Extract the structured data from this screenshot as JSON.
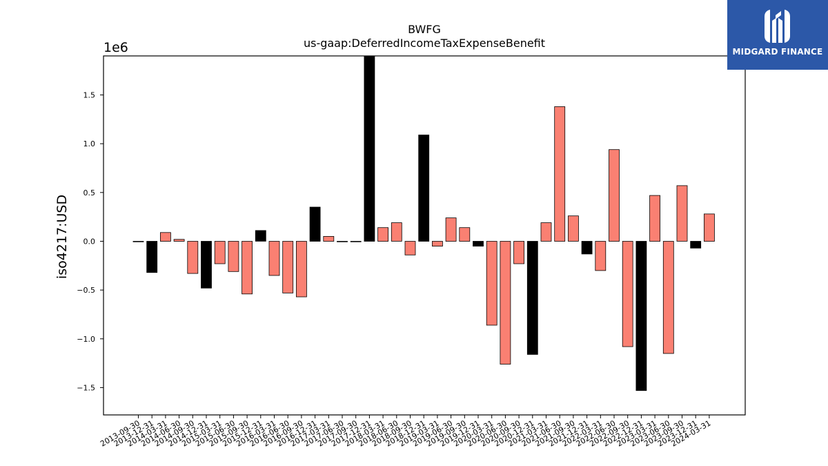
{
  "chart_data": {
    "type": "bar",
    "title": "BWFG",
    "subtitle": "us-gaap:DeferredIncomeTaxExpenseBenefit",
    "ylabel": "iso4217:USD",
    "xlabel": "",
    "y_multiplier_label": "1e6",
    "ylim": [
      -1.78,
      1.9
    ],
    "yticks": [
      -1.5,
      -1.0,
      -0.5,
      0.0,
      0.5,
      1.0,
      1.5
    ],
    "ytick_labels": [
      "−1.5",
      "−1.0",
      "−0.5",
      "0.0",
      "0.5",
      "1.0",
      "1.5"
    ],
    "grid": false,
    "colors": {
      "default": "#fa8072",
      "q4": "#000000",
      "edge": "#000000"
    },
    "categories": [
      "2013-09-30",
      "2013-12-31",
      "2014-03-31",
      "2014-06-30",
      "2014-09-30",
      "2014-12-31",
      "2015-03-31",
      "2015-06-30",
      "2015-09-30",
      "2015-12-31",
      "2016-03-31",
      "2016-06-30",
      "2016-09-30",
      "2016-12-31",
      "2017-03-31",
      "2017-06-30",
      "2017-09-30",
      "2017-12-31",
      "2018-03-31",
      "2018-06-30",
      "2018-09-30",
      "2018-12-31",
      "2019-03-31",
      "2019-06-30",
      "2019-09-30",
      "2019-12-31",
      "2020-03-31",
      "2020-06-30",
      "2020-09-30",
      "2020-12-31",
      "2021-03-31",
      "2021-06-30",
      "2021-09-30",
      "2021-12-31",
      "2022-03-31",
      "2022-06-30",
      "2022-09-30",
      "2022-12-31",
      "2023-03-31",
      "2023-06-30",
      "2023-09-30",
      "2023-12-31",
      "2024-03-31"
    ],
    "values": [
      0.0,
      -0.32,
      0.09,
      0.02,
      -0.33,
      -0.48,
      -0.23,
      -0.31,
      -0.54,
      0.11,
      -0.35,
      -0.53,
      -0.57,
      0.35,
      0.05,
      0.0,
      0.0,
      1.95,
      0.14,
      0.19,
      -0.14,
      1.09,
      -0.05,
      0.24,
      0.14,
      -0.05,
      -0.86,
      -1.26,
      -0.23,
      -1.16,
      0.19,
      1.38,
      0.26,
      -0.13,
      -0.3,
      0.94,
      -1.08,
      -1.53,
      0.47,
      -1.15,
      0.57,
      -0.07,
      0.28
    ]
  },
  "brand": {
    "name": "MIDGARD FINANCE"
  }
}
